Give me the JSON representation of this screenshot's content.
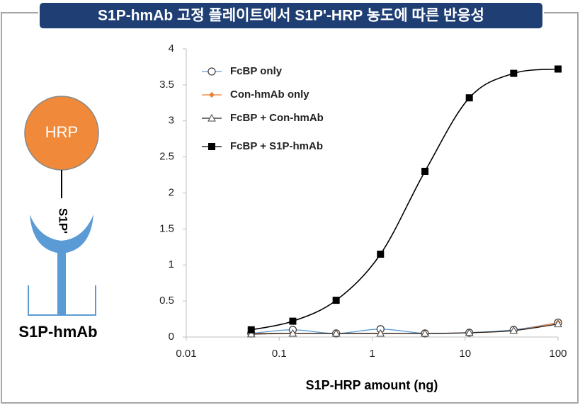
{
  "diagram": {
    "enzyme": "HRP",
    "ligand": "S1P'",
    "antibody": "S1P-hmAb"
  },
  "chart_data": {
    "type": "line",
    "title": "S1P-hmAb 고정 플레이트에서 S1P'-HRP 농도에 따른 반응성",
    "x_label": "S1P-HRP amount (ng)",
    "xscale": "log",
    "x": [
      0.05,
      0.14,
      0.41,
      1.23,
      3.7,
      11.1,
      33.3,
      100
    ],
    "series": [
      {
        "name": "FcBP only",
        "color": "#5b9bd5",
        "marker": "circle",
        "values": [
          0.05,
          0.1,
          0.05,
          0.11,
          0.05,
          0.06,
          0.1,
          0.2
        ]
      },
      {
        "name": "Con-hmAb only",
        "color": "#ed7d31",
        "marker": "diamond",
        "values": [
          0.05,
          0.05,
          0.05,
          0.05,
          0.05,
          0.06,
          0.09,
          0.2
        ]
      },
      {
        "name": "FcBP + Con-hmAb",
        "color": "#222222",
        "marker": "triangle",
        "values": [
          0.04,
          0.05,
          0.05,
          0.05,
          0.05,
          0.06,
          0.09,
          0.18
        ]
      },
      {
        "name": "FcBP + S1P-hmAb",
        "color": "#000000",
        "marker": "square",
        "values": [
          0.1,
          0.22,
          0.51,
          1.15,
          2.3,
          3.32,
          3.66,
          3.72
        ]
      }
    ],
    "xlim": [
      0.01,
      100
    ],
    "xticks": [
      0.01,
      0.1,
      1,
      10,
      100
    ],
    "ylim": [
      0,
      4
    ],
    "yticks": [
      0,
      0.5,
      1,
      1.5,
      2,
      2.5,
      3,
      3.5,
      4
    ],
    "grid": false
  }
}
